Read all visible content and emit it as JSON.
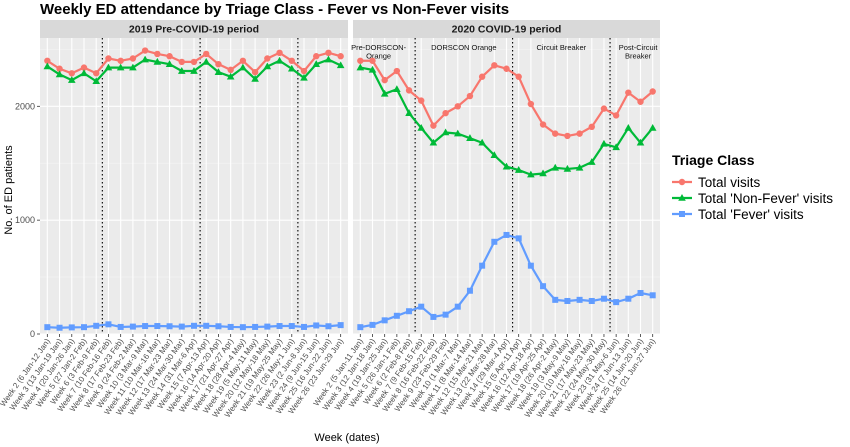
{
  "chart_data": {
    "type": "line",
    "title": "Weekly ED attendance by Triage Class - Fever vs Non-Fever visits",
    "xlabel": "Week (dates)",
    "ylabel": "No. of ED patients",
    "ylim": [
      0,
      2600
    ],
    "yticks": [
      0,
      1000,
      2000
    ],
    "grid": true,
    "legend": {
      "title": "Triage Class",
      "position": "right",
      "entries": [
        "Total visits",
        "Total 'Non-Fever' visits",
        "Total 'Fever' visits"
      ]
    },
    "colors": {
      "Total visits": "#F8766D",
      "Total 'Non-Fever' visits": "#00BA38",
      "Total 'Fever' visits": "#619CFF",
      "panel_background": "#EBEBEB",
      "strip_background": "#D9D9D9"
    },
    "facets": [
      {
        "strip": "2019 Pre-COVID-19 period",
        "x_labels": [
          "Week 2 (6 Jan-12 Jan)",
          "Week 3 (13 Jan-19 Jan)",
          "Week 4 (20 Jan-26 Jan)",
          "Week 5 (27 Jan-2 Feb)",
          "Week 6 (3 Feb-9 Feb)",
          "Week 7 (10 Feb-16 Feb)",
          "Week 8 (17 Feb-23 Feb)",
          "Week 9 (24 Feb-2 Mar)",
          "Week 10 (3 Mar-9 Mar)",
          "Week 11 (10 Mar-16 Mar)",
          "Week 12 (17 Mar-23 Mar)",
          "Week 13 (24 Mar-30 Mar)",
          "Week 14 (31 Mar-6 Apr)",
          "Week 15 (7 Apr-13 Apr)",
          "Week 16 (14 Apr-20 Apr)",
          "Week 17 (21 Apr-27 Apr)",
          "Week 18 (28 Apr-4 May)",
          "Week 19 (5 May-11 May)",
          "Week 20 (12 May-18 May)",
          "Week 21 (19 May-25 May)",
          "Week 22 (26 May-1 Jun)",
          "Week 23 (2 Jun-8 Jun)",
          "Week 24 (9 Jun-15 Jun)",
          "Week 25 (16 Jun-22 Jun)",
          "Week 26 (23 Jun-29 Jun)"
        ],
        "phase_lines_after_index": [
          4.5,
          12.5,
          20.5
        ],
        "phases": [],
        "series": [
          {
            "name": "Total visits",
            "values": [
              2400,
              2330,
              2290,
              2340,
              2290,
              2420,
              2400,
              2420,
              2490,
              2460,
              2440,
              2390,
              2390,
              2460,
              2370,
              2320,
              2400,
              2300,
              2420,
              2470,
              2400,
              2310,
              2440,
              2470,
              2440
            ]
          },
          {
            "name": "Total 'Non-Fever' visits",
            "values": [
              2350,
              2280,
              2230,
              2290,
              2220,
              2340,
              2340,
              2340,
              2410,
              2390,
              2370,
              2310,
              2310,
              2390,
              2300,
              2260,
              2340,
              2240,
              2350,
              2400,
              2330,
              2250,
              2370,
              2410,
              2360
            ]
          },
          {
            "name": "Total 'Fever' visits",
            "values": [
              60,
              55,
              58,
              60,
              72,
              85,
              62,
              65,
              70,
              70,
              68,
              65,
              72,
              72,
              68,
              62,
              60,
              62,
              65,
              70,
              70,
              62,
              75,
              68,
              78
            ]
          }
        ]
      },
      {
        "strip": "2020 COVID-19 period",
        "x_labels": [
          "Week 2 (5 Jan-11 Jan)",
          "Week 3 (12 Jan-18 Jan)",
          "Week 4 (19 Jan-25 Jan)",
          "Week 5 (26 Jan-1 Feb)",
          "Week 6 (2 Feb-8 Feb)",
          "Week 7 (9 Feb-15 Feb)",
          "Week 8 (16 Feb-22 Feb)",
          "Week 9 (23 Feb-29 Feb)",
          "Week 10 (1 Mar-7 Mar)",
          "Week 11 (8 Mar-14 Mar)",
          "Week 12 (15 Mar-21 Mar)",
          "Week 13 (22 Mar-28 Mar)",
          "Week 14 (29 Mar-4 Apr)",
          "Week 15 (5 Apr-11 Apr)",
          "Week 16 (12 Apr-18 Apr)",
          "Week 17 (19 Apr-25 Apr)",
          "Week 18 (26 Apr-2 May)",
          "Week 19 (3 May-9 May)",
          "Week 20 (10 May-16 May)",
          "Week 21 (17 May-23 May)",
          "Week 22 (24 May-30 May)",
          "Week 23 (31 May-6 Jun)",
          "Week 24 (7 Jun-13 Jun)",
          "Week 25 (14 Jun-20 Jun)",
          "Week 26 (21 Jun-27 Jun)"
        ],
        "phase_lines_after_index": [
          4.5,
          12.5,
          20.5
        ],
        "phases": [
          {
            "label": [
              "Pre-DORSCON-",
              "Orange"
            ],
            "center_index": 1.5
          },
          {
            "label": [
              "DORSCON Orange"
            ],
            "center_index": 8.5
          },
          {
            "label": [
              "Circuit Breaker"
            ],
            "center_index": 16.5
          },
          {
            "label": [
              "Post-Circuit",
              "Breaker"
            ],
            "center_index": 22.8
          }
        ],
        "series": [
          {
            "name": "Total visits",
            "values": [
              2400,
              2400,
              2230,
              2310,
              2140,
              2050,
              1830,
              1940,
              2000,
              2090,
              2260,
              2360,
              2330,
              2260,
              2020,
              1840,
              1760,
              1740,
              1760,
              1820,
              1980,
              1920,
              2120,
              2040,
              2130
            ]
          },
          {
            "name": "Total 'Non-Fever' visits",
            "values": [
              2340,
              2320,
              2110,
              2150,
              1940,
              1810,
              1680,
              1770,
              1760,
              1720,
              1680,
              1570,
              1470,
              1440,
              1400,
              1410,
              1460,
              1450,
              1460,
              1510,
              1670,
              1640,
              1810,
              1680,
              1810
            ]
          },
          {
            "name": "Total 'Fever' visits",
            "values": [
              60,
              80,
              120,
              160,
              200,
              240,
              150,
              170,
              240,
              380,
              600,
              810,
              870,
              840,
              600,
              420,
              300,
              290,
              300,
              290,
              310,
              280,
              310,
              360,
              340
            ]
          }
        ]
      }
    ]
  }
}
